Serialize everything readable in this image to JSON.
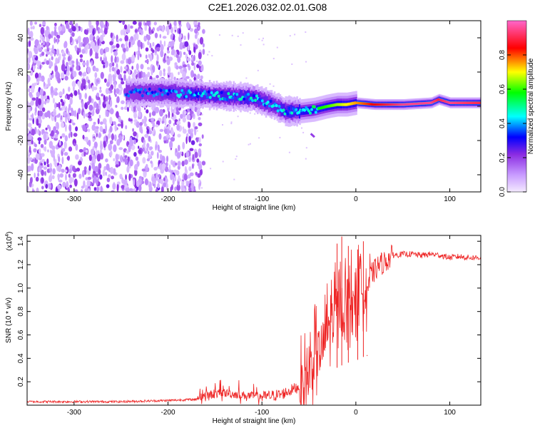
{
  "title": "C2E1.2026.032.02.01.G08",
  "colorbar": {
    "label": "Normalized spectral amplitude",
    "ticks": [
      0.0,
      0.2,
      0.4,
      0.6,
      0.8
    ],
    "tick_labels": [
      "0.0",
      "0.2",
      "0.4",
      "0.6",
      "0.8"
    ],
    "range": [
      0,
      1
    ],
    "colors": [
      "#f2e6ff",
      "#c89bff",
      "#8a2be2",
      "#0000ff",
      "#00ffff",
      "#00ff00",
      "#ffff00",
      "#ff0000",
      "#ff66cc"
    ]
  },
  "chart_data": [
    {
      "type": "heatmap",
      "title": "",
      "xlabel": "Height of straight line (km)",
      "ylabel": "Frequency (Hz)",
      "xlim": [
        -350,
        133
      ],
      "ylim": [
        -50,
        50
      ],
      "xticks": [
        -300,
        -200,
        -100,
        0,
        100
      ],
      "xtick_labels": [
        "-300",
        "-200",
        "-100",
        "0",
        "100"
      ],
      "yticks": [
        -40,
        -20,
        0,
        20,
        40
      ],
      "ytick_labels": [
        "-40",
        "-20",
        "0",
        "20",
        "40"
      ],
      "noise_region": [
        -350,
        -170
      ],
      "ridge": {
        "x": [
          -240,
          -200,
          -170,
          -140,
          -110,
          -90,
          -75,
          -60,
          -45,
          -30,
          -20,
          -10,
          0,
          20,
          50,
          80,
          88,
          100,
          133
        ],
        "y": [
          8,
          8,
          7,
          6,
          5,
          1,
          -3,
          -3,
          -2,
          0,
          1,
          1,
          2,
          1,
          1,
          2,
          4,
          2,
          2
        ],
        "amp": [
          0.35,
          0.4,
          0.45,
          0.45,
          0.45,
          0.42,
          0.45,
          0.5,
          0.55,
          0.6,
          0.65,
          0.7,
          0.75,
          0.85,
          0.95,
          0.95,
          0.9,
          0.95,
          0.9
        ]
      },
      "secondary_feature": {
        "x": [
          -48,
          -44
        ],
        "y": [
          -16,
          -18
        ]
      }
    },
    {
      "type": "line",
      "title": "",
      "xlabel": "Height of straight line (km)",
      "ylabel": "SNR (10 * v/v)",
      "y_multiplier": "(x10",
      "y_exponent": "4",
      "y_multiplier_close": ")",
      "xlim": [
        -350,
        133
      ],
      "ylim": [
        0,
        1.45
      ],
      "xticks": [
        -300,
        -200,
        -100,
        0,
        100
      ],
      "xtick_labels": [
        "-300",
        "-200",
        "-100",
        "0",
        "100"
      ],
      "yticks": [
        0.2,
        0.4,
        0.6,
        0.8,
        1.0,
        1.2,
        1.4
      ],
      "ytick_labels": [
        "0.2",
        "0.4",
        "0.6",
        "0.8",
        "1.0",
        "1.2",
        "1.4"
      ],
      "series": [
        {
          "name": "SNR",
          "color": "#ee2222",
          "x": [
            -350,
            -300,
            -250,
            -200,
            -170,
            -160,
            -150,
            -140,
            -130,
            -120,
            -100,
            -80,
            -60,
            -50,
            -45,
            -40,
            -35,
            -30,
            -25,
            -20,
            -15,
            -10,
            -5,
            0,
            5,
            10,
            15,
            20,
            25,
            30,
            35,
            40,
            50,
            60,
            70,
            80,
            90,
            100,
            110,
            120,
            133
          ],
          "y": [
            0.03,
            0.03,
            0.03,
            0.04,
            0.05,
            0.07,
            0.08,
            0.09,
            0.08,
            0.07,
            0.06,
            0.08,
            0.15,
            0.25,
            0.4,
            0.45,
            0.5,
            0.65,
            0.75,
            0.8,
            0.85,
            0.9,
            0.92,
            0.95,
            1.0,
            1.05,
            1.1,
            1.15,
            1.2,
            1.22,
            1.25,
            1.28,
            1.29,
            1.29,
            1.28,
            1.29,
            1.28,
            1.26,
            1.27,
            1.26,
            1.26
          ],
          "spikes": [
            {
              "x": -20,
              "y": 1.38
            },
            {
              "x": -15,
              "y": 1.44
            },
            {
              "x": -8,
              "y": 1.36
            },
            {
              "x": 2,
              "y": 1.33
            },
            {
              "x": 8,
              "y": 1.4
            },
            {
              "x": 12,
              "y": 0.42
            }
          ]
        }
      ]
    }
  ]
}
